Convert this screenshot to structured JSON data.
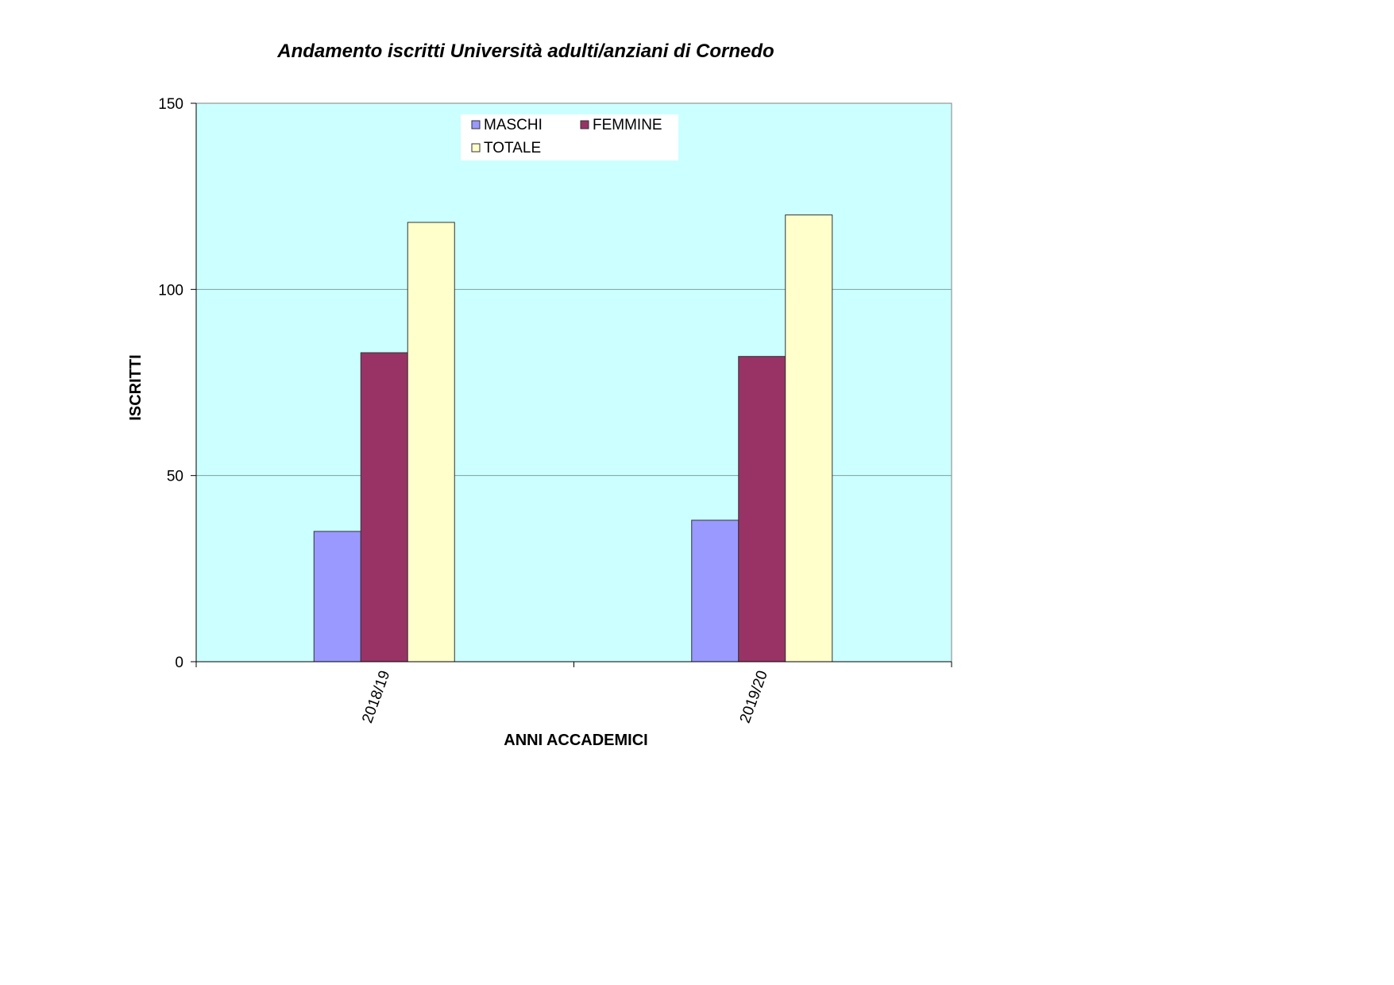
{
  "chart_data": {
    "type": "bar",
    "title": "Andamento iscritti Università adulti/anziani di Cornedo",
    "xlabel": "ANNI ACCADEMICI",
    "ylabel": "ISCRITTI",
    "categories": [
      "2018/19",
      "2019/20"
    ],
    "series": [
      {
        "name": "MASCHI",
        "values": [
          35,
          38
        ],
        "color": "#9999ff"
      },
      {
        "name": "FEMMINE",
        "values": [
          83,
          82
        ],
        "color": "#993366"
      },
      {
        "name": "TOTALE",
        "values": [
          118,
          120
        ],
        "color": "#ffffcc"
      }
    ],
    "ylim": [
      0,
      150
    ],
    "yticks": [
      "0",
      "50",
      "100",
      "150"
    ],
    "grid": true,
    "legend_position": "top-center",
    "plot_background": "#ccffff"
  }
}
